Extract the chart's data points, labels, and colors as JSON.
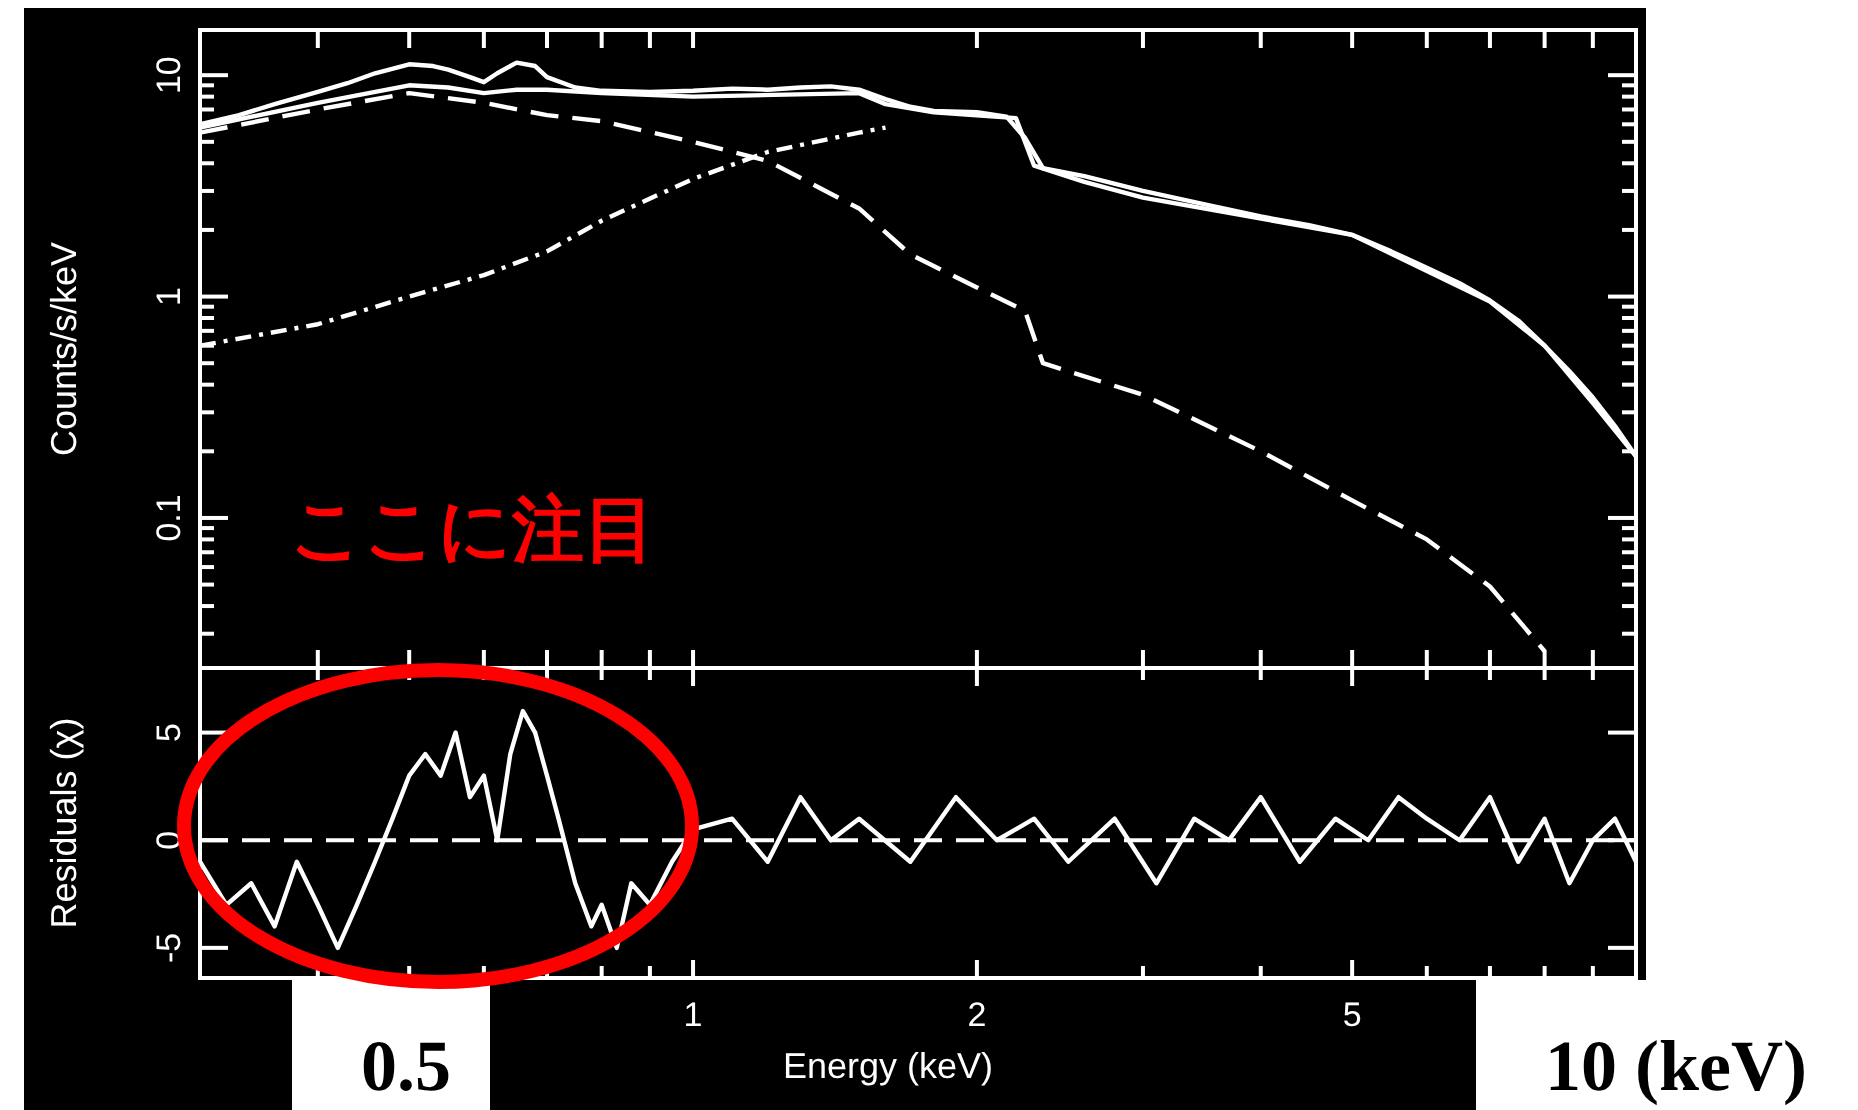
{
  "chart_data": [
    {
      "type": "line",
      "ylabel": "Counts/s/keV",
      "log": "xy",
      "xlim": [
        0.3,
        10
      ],
      "ylim": [
        0.021,
        16
      ],
      "tick_labels": "y",
      "grid": false,
      "xticks": [
        {
          "value": 0.4,
          "label": null
        },
        {
          "value": 0.5,
          "label": null
        },
        {
          "value": 0.6,
          "label": null
        },
        {
          "value": 0.7,
          "label": null
        },
        {
          "value": 0.8,
          "label": null
        },
        {
          "value": 0.9,
          "label": null
        },
        {
          "value": 1,
          "label": null
        },
        {
          "value": 2,
          "label": null
        },
        {
          "value": 3,
          "label": null
        },
        {
          "value": 4,
          "label": null
        },
        {
          "value": 5,
          "label": null
        },
        {
          "value": 6,
          "label": null
        },
        {
          "value": 7,
          "label": null
        },
        {
          "value": 8,
          "label": null
        },
        {
          "value": 9,
          "label": null
        }
      ],
      "yticks": [
        {
          "value": 0.03,
          "label": null
        },
        {
          "value": 0.04,
          "label": null
        },
        {
          "value": 0.05,
          "label": null
        },
        {
          "value": 0.06,
          "label": null
        },
        {
          "value": 0.07,
          "label": null
        },
        {
          "value": 0.08,
          "label": null
        },
        {
          "value": 0.09,
          "label": null
        },
        0.1,
        {
          "value": 0.2,
          "label": null
        },
        {
          "value": 0.3,
          "label": null
        },
        {
          "value": 0.4,
          "label": null
        },
        {
          "value": 0.5,
          "label": null
        },
        {
          "value": 0.6,
          "label": null
        },
        {
          "value": 0.7,
          "label": null
        },
        {
          "value": 0.8,
          "label": null
        },
        {
          "value": 0.9,
          "label": null
        },
        1,
        {
          "value": 2,
          "label": null
        },
        {
          "value": 3,
          "label": null
        },
        {
          "value": 4,
          "label": null
        },
        {
          "value": 5,
          "label": null
        },
        {
          "value": 6,
          "label": null
        },
        {
          "value": 7,
          "label": null
        },
        {
          "value": 8,
          "label": null
        },
        {
          "value": 9,
          "label": null
        },
        10
      ],
      "annotations": [
        "ここに注目"
      ],
      "series": [
        {
          "color": "#ffffff",
          "line_style": "solid",
          "x": [
            0.3,
            0.33,
            0.36,
            0.4,
            0.43,
            0.46,
            0.5,
            0.53,
            0.55,
            0.58,
            0.6,
            0.62,
            0.65,
            0.68,
            0.7,
            0.75,
            0.8,
            0.9,
            1.0,
            1.1,
            1.2,
            1.3,
            1.4,
            1.5,
            1.6,
            1.7,
            1.8,
            2.0,
            2.15,
            2.25,
            2.35,
            2.6,
            3.0,
            3.5,
            4.0,
            4.5,
            5.0,
            5.5,
            6.0,
            6.5,
            7.0,
            7.5,
            8.0,
            8.5,
            9.0,
            9.5,
            10
          ],
          "values": [
            6.0,
            6.6,
            7.4,
            8.4,
            9.2,
            10.2,
            11.2,
            11.0,
            10.6,
            9.8,
            9.3,
            10.2,
            11.4,
            11.0,
            9.8,
            8.8,
            8.5,
            8.4,
            8.5,
            8.7,
            8.6,
            8.8,
            8.9,
            8.6,
            7.8,
            7.2,
            6.9,
            6.8,
            6.5,
            5.2,
            3.8,
            3.5,
            3.0,
            2.6,
            2.3,
            2.1,
            1.9,
            1.6,
            1.35,
            1.15,
            0.96,
            0.78,
            0.6,
            0.46,
            0.35,
            0.26,
            0.19
          ]
        },
        {
          "color": "#ffffff",
          "line_style": "solid",
          "x": [
            0.3,
            0.4,
            0.5,
            0.55,
            0.6,
            0.65,
            0.7,
            0.8,
            1.0,
            1.5,
            1.6,
            1.8,
            2.2,
            2.3,
            2.6,
            3.0,
            5.0,
            7.0,
            8.0,
            9.0,
            10
          ],
          "values": [
            5.8,
            7.5,
            9.0,
            8.8,
            8.3,
            8.6,
            8.6,
            8.3,
            8.0,
            8.3,
            7.4,
            6.8,
            6.4,
            3.9,
            3.3,
            2.8,
            1.9,
            0.95,
            0.6,
            0.33,
            0.19
          ]
        },
        {
          "color": "#ffffff",
          "line_style": "dashed",
          "x": [
            0.3,
            0.4,
            0.5,
            0.6,
            0.7,
            0.8,
            1.0,
            1.2,
            1.5,
            1.7,
            2.0,
            2.25,
            2.35,
            3.0,
            4.0,
            5.0,
            6.0,
            7.0,
            8.0
          ],
          "values": [
            5.5,
            7.0,
            8.3,
            7.5,
            6.6,
            6.2,
            5.0,
            4.1,
            2.5,
            1.55,
            1.1,
            0.86,
            0.5,
            0.36,
            0.2,
            0.12,
            0.08,
            0.049,
            0.025
          ]
        },
        {
          "color": "#ffffff",
          "line_style": "dotted",
          "x": [
            0.3,
            0.4,
            0.5,
            0.6,
            0.7,
            0.8,
            1.0,
            1.2,
            1.5,
            1.6
          ],
          "values": [
            0.6,
            0.75,
            1.0,
            1.25,
            1.6,
            2.2,
            3.4,
            4.5,
            5.5,
            5.8
          ]
        }
      ]
    },
    {
      "type": "line",
      "xlabel": "Energy (keV)",
      "ylabel": "Residuals (χ)",
      "log": "x",
      "xlim": [
        0.3,
        10
      ],
      "ylim": [
        -6.4,
        8
      ],
      "grid": false,
      "xticks": [
        {
          "value": 0.4,
          "label": null
        },
        {
          "value": 0.5,
          "label": null
        },
        {
          "value": 0.6,
          "label": null
        },
        {
          "value": 0.7,
          "label": null
        },
        {
          "value": 0.8,
          "label": null
        },
        {
          "value": 0.9,
          "label": null
        },
        1,
        2,
        {
          "value": 3,
          "label": null
        },
        {
          "value": 4,
          "label": null
        },
        5,
        {
          "value": 6,
          "label": null
        },
        {
          "value": 7,
          "label": null
        },
        {
          "value": 8,
          "label": null
        },
        {
          "value": 9,
          "label": null
        }
      ],
      "yticks": [
        -5,
        0,
        5
      ],
      "ref_lines": [
        {
          "axis": "y",
          "value": 0,
          "line_style": "dashed",
          "color": "#ffffff"
        }
      ],
      "annotations": [
        "0.5",
        "10 (keV)"
      ],
      "series": [
        {
          "color": "#ffffff",
          "line_style": "solid",
          "x": [
            0.3,
            0.32,
            0.34,
            0.36,
            0.38,
            0.4,
            0.42,
            0.44,
            0.46,
            0.48,
            0.5,
            0.52,
            0.54,
            0.56,
            0.58,
            0.6,
            0.62,
            0.64,
            0.66,
            0.68,
            0.7,
            0.72,
            0.75,
            0.78,
            0.8,
            0.83,
            0.86,
            0.9,
            0.95,
            1.0,
            1.1,
            1.2,
            1.3,
            1.4,
            1.5,
            1.7,
            1.9,
            2.1,
            2.3,
            2.5,
            2.8,
            3.1,
            3.4,
            3.7,
            4.0,
            4.4,
            4.8,
            5.2,
            5.6,
            6.0,
            6.5,
            7.0,
            7.5,
            8.0,
            8.5,
            9.0,
            9.5,
            10
          ],
          "values": [
            -1,
            -3,
            -2,
            -4,
            -1,
            -3,
            -5,
            -3,
            -1,
            1,
            3,
            4,
            3,
            5,
            2,
            3,
            0,
            4,
            6,
            5,
            3,
            1,
            -2,
            -4,
            -3,
            -5,
            -2,
            -3,
            -1,
            0.5,
            1,
            -1,
            2,
            0,
            1,
            -1,
            2,
            0,
            1,
            -1,
            1,
            -2,
            1,
            0,
            2,
            -1,
            1,
            0,
            2,
            1,
            0,
            2,
            -1,
            1,
            -2,
            0,
            1,
            -1
          ]
        }
      ]
    }
  ]
}
